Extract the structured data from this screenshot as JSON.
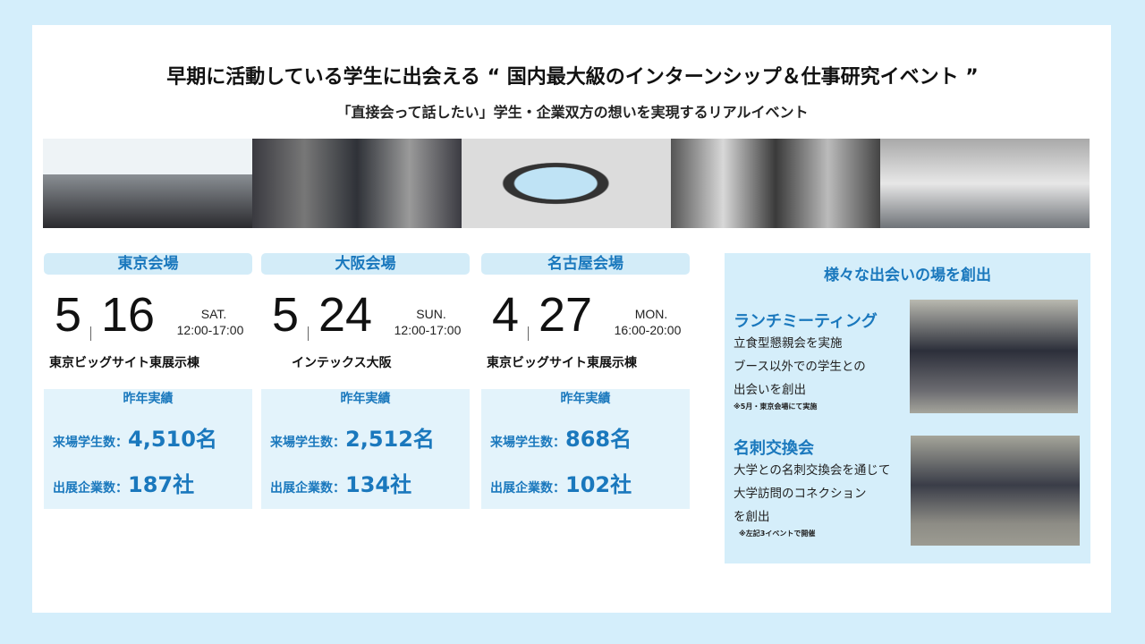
{
  "title": "早期に活動している学生に出会える “ 国内最大級のインターンシップ＆仕事研究イベント ”",
  "subtitle": "「直接会って話したい」学生・企業双方の想いを実現するリアルイベント",
  "photos": [
    "event-entrance-photo",
    "queue-photo",
    "smartphone-photo",
    "students-writing-photo",
    "venue-hall-photo"
  ],
  "venues": [
    {
      "name": "東京会場",
      "month": "5",
      "day": "16",
      "weekday": "SAT.",
      "time": "12:00-17:00",
      "place": "東京ビッグサイト東展示棟",
      "stats_title": "昨年実績",
      "students_label": "来場学生数：",
      "students": "4,510名",
      "companies_label": "出展企業数：",
      "companies": "187社"
    },
    {
      "name": "大阪会場",
      "month": "5",
      "day": "24",
      "weekday": "SUN.",
      "time": "12:00-17:00",
      "place": "インテックス大阪",
      "stats_title": "昨年実績",
      "students_label": "来場学生数：",
      "students": "2,512名",
      "companies_label": "出展企業数：",
      "companies": "134社"
    },
    {
      "name": "名古屋会場",
      "month": "4",
      "day": "27",
      "weekday": "MON.",
      "time": "16:00-20:00",
      "place": "東京ビッグサイト東展示棟",
      "stats_title": "昨年実績",
      "students_label": "来場学生数：",
      "students": "868名",
      "companies_label": "出展企業数：",
      "companies": "102社"
    }
  ],
  "right": {
    "title": "様々な出会いの場を創出",
    "lunch": {
      "title": "ランチミーティング",
      "lines": [
        "立食型懇親会を実施",
        "ブース以外での学生との",
        "出会いを創出"
      ],
      "note": "※5月・東京会場にて実施"
    },
    "card": {
      "title": "名刺交換会",
      "lines": [
        "大学との名刺交換会を通じて",
        "大学訪問のコネクション",
        "を創出"
      ],
      "note": "※左記3イベントで開催"
    }
  },
  "colors": {
    "accent": "#1a78bd",
    "background": "#d4eefb",
    "pill": "#d3ecf8",
    "stats": "#e3f3fb"
  }
}
